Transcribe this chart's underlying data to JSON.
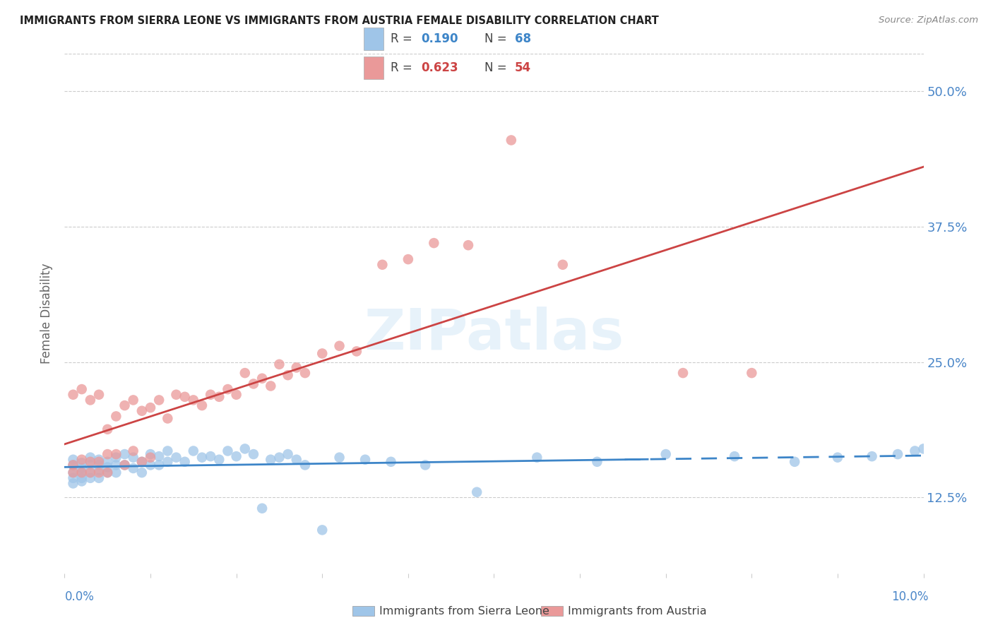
{
  "title": "IMMIGRANTS FROM SIERRA LEONE VS IMMIGRANTS FROM AUSTRIA FEMALE DISABILITY CORRELATION CHART",
  "source": "Source: ZipAtlas.com",
  "ylabel": "Female Disability",
  "ytick_values": [
    0.125,
    0.25,
    0.375,
    0.5
  ],
  "xlim": [
    0.0,
    0.1
  ],
  "ylim": [
    0.055,
    0.535
  ],
  "legend_r1": "0.190",
  "legend_n1": "68",
  "legend_r2": "0.623",
  "legend_n2": "54",
  "color_sl": "#9fc5e8",
  "color_at": "#ea9999",
  "color_sl_line": "#3d85c8",
  "color_at_line": "#cc4444",
  "sl_x": [
    0.001,
    0.001,
    0.001,
    0.001,
    0.001,
    0.002,
    0.002,
    0.002,
    0.002,
    0.002,
    0.003,
    0.003,
    0.003,
    0.003,
    0.004,
    0.004,
    0.004,
    0.004,
    0.005,
    0.005,
    0.005,
    0.006,
    0.006,
    0.006,
    0.007,
    0.007,
    0.008,
    0.008,
    0.009,
    0.009,
    0.01,
    0.01,
    0.011,
    0.011,
    0.012,
    0.012,
    0.013,
    0.014,
    0.015,
    0.016,
    0.017,
    0.018,
    0.019,
    0.02,
    0.021,
    0.022,
    0.023,
    0.024,
    0.025,
    0.026,
    0.027,
    0.028,
    0.03,
    0.032,
    0.035,
    0.038,
    0.042,
    0.048,
    0.055,
    0.062,
    0.07,
    0.078,
    0.085,
    0.09,
    0.094,
    0.097,
    0.099,
    0.1
  ],
  "sl_y": [
    0.16,
    0.155,
    0.148,
    0.143,
    0.138,
    0.157,
    0.152,
    0.148,
    0.143,
    0.14,
    0.162,
    0.155,
    0.148,
    0.143,
    0.16,
    0.155,
    0.15,
    0.143,
    0.158,
    0.153,
    0.148,
    0.162,
    0.155,
    0.148,
    0.165,
    0.155,
    0.162,
    0.152,
    0.158,
    0.148,
    0.165,
    0.155,
    0.163,
    0.155,
    0.168,
    0.158,
    0.162,
    0.158,
    0.168,
    0.162,
    0.163,
    0.16,
    0.168,
    0.163,
    0.17,
    0.165,
    0.115,
    0.16,
    0.162,
    0.165,
    0.16,
    0.155,
    0.095,
    0.162,
    0.16,
    0.158,
    0.155,
    0.13,
    0.162,
    0.158,
    0.165,
    0.163,
    0.158,
    0.162,
    0.163,
    0.165,
    0.168,
    0.17
  ],
  "at_x": [
    0.001,
    0.001,
    0.001,
    0.002,
    0.002,
    0.002,
    0.003,
    0.003,
    0.003,
    0.004,
    0.004,
    0.004,
    0.005,
    0.005,
    0.005,
    0.006,
    0.006,
    0.007,
    0.007,
    0.008,
    0.008,
    0.009,
    0.009,
    0.01,
    0.01,
    0.011,
    0.012,
    0.013,
    0.014,
    0.015,
    0.016,
    0.017,
    0.018,
    0.019,
    0.02,
    0.021,
    0.022,
    0.023,
    0.024,
    0.025,
    0.026,
    0.027,
    0.028,
    0.03,
    0.032,
    0.034,
    0.037,
    0.04,
    0.043,
    0.047,
    0.052,
    0.058,
    0.072,
    0.08
  ],
  "at_y": [
    0.155,
    0.148,
    0.22,
    0.225,
    0.16,
    0.148,
    0.215,
    0.158,
    0.148,
    0.22,
    0.158,
    0.148,
    0.165,
    0.188,
    0.148,
    0.2,
    0.165,
    0.21,
    0.155,
    0.215,
    0.168,
    0.205,
    0.158,
    0.208,
    0.162,
    0.215,
    0.198,
    0.22,
    0.218,
    0.215,
    0.21,
    0.22,
    0.218,
    0.225,
    0.22,
    0.24,
    0.23,
    0.235,
    0.228,
    0.248,
    0.238,
    0.245,
    0.24,
    0.258,
    0.265,
    0.26,
    0.34,
    0.345,
    0.36,
    0.358,
    0.455,
    0.34,
    0.24,
    0.24
  ]
}
